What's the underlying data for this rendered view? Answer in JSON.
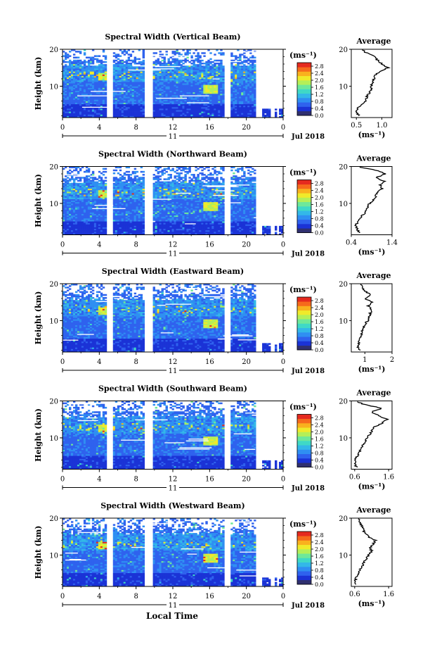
{
  "figure": {
    "x_axis_label": "Local Time",
    "colorbar_unit": "(ms⁻¹)",
    "colorbar_ticks": [
      "0.0",
      "0.4",
      "0.8",
      "1.2",
      "1.6",
      "2.0",
      "2.4",
      "2.8"
    ],
    "profile_title": "Average",
    "profile_xlabel": "(ms⁻¹)",
    "height_label": "Height (km)",
    "date_label": "Jul 2018",
    "day_label": "11",
    "x_ticks": [
      "0",
      "4",
      "8",
      "12",
      "16",
      "20",
      "0"
    ],
    "y_ticks": [
      "20",
      "10"
    ]
  },
  "colors": {
    "colormap": [
      "#303070",
      "#1b33d6",
      "#2f62ee",
      "#2f8ff2",
      "#33b8e8",
      "#3fd9c6",
      "#6ee89a",
      "#b4ef58",
      "#f0ea2a",
      "#f9b11e",
      "#f66a1c",
      "#e52a1f"
    ]
  },
  "chart_data": [
    {
      "type": "heatmap",
      "title": "Spectral Width (Vertical Beam)",
      "x_range_hours": [
        0,
        24
      ],
      "y_range_km": [
        1.5,
        20
      ],
      "color_range": [
        0.0,
        3.0
      ],
      "profile": {
        "xticks": [
          "0.5",
          "1.0"
        ],
        "xlim": [
          0.4,
          1.2
        ],
        "heights": [
          2,
          3,
          4,
          5,
          6,
          7,
          8,
          9,
          10,
          11,
          12,
          13,
          14,
          15,
          16,
          17,
          18,
          19,
          20
        ],
        "values": [
          0.55,
          0.5,
          0.52,
          0.6,
          0.68,
          0.7,
          0.75,
          0.8,
          0.78,
          0.82,
          0.85,
          0.88,
          0.95,
          1.12,
          1.0,
          0.92,
          0.85,
          0.7,
          0.6
        ]
      }
    },
    {
      "type": "heatmap",
      "title": "Spectral Width (Northward Beam)",
      "x_range_hours": [
        0,
        24
      ],
      "y_range_km": [
        1.5,
        20
      ],
      "color_range": [
        0.0,
        3.0
      ],
      "profile": {
        "xticks": [
          "0.4",
          "1.4"
        ],
        "xlim": [
          0.4,
          1.4
        ],
        "heights": [
          2,
          3,
          4,
          5,
          6,
          7,
          8,
          9,
          10,
          11,
          12,
          13,
          14,
          15,
          16,
          17,
          18,
          19,
          20
        ],
        "values": [
          0.6,
          0.55,
          0.5,
          0.58,
          0.62,
          0.7,
          0.75,
          0.8,
          0.85,
          0.95,
          1.0,
          1.05,
          1.15,
          1.1,
          1.2,
          1.0,
          1.25,
          1.0,
          0.5
        ]
      }
    },
    {
      "type": "heatmap",
      "title": "Spectral Width (Eastward Beam)",
      "x_range_hours": [
        0,
        24
      ],
      "y_range_km": [
        1.5,
        20
      ],
      "color_range": [
        0.0,
        3.0
      ],
      "profile": {
        "xticks": [
          "1",
          "2"
        ],
        "xlim": [
          0.5,
          2.0
        ],
        "heights": [
          2,
          3,
          4,
          5,
          6,
          7,
          8,
          9,
          10,
          11,
          12,
          13,
          14,
          15,
          16,
          17,
          18,
          19,
          20
        ],
        "values": [
          0.8,
          0.75,
          0.78,
          0.82,
          0.85,
          0.9,
          0.95,
          1.0,
          1.1,
          1.15,
          1.2,
          1.25,
          1.1,
          1.3,
          1.0,
          1.2,
          1.0,
          0.9,
          0.85
        ]
      }
    },
    {
      "type": "heatmap",
      "title": "Spectral Width (Southward Beam)",
      "x_range_hours": [
        0,
        24
      ],
      "y_range_km": [
        1.5,
        20
      ],
      "color_range": [
        0.0,
        3.0
      ],
      "profile": {
        "xticks": [
          "0.6",
          "1.6"
        ],
        "xlim": [
          0.5,
          1.7
        ],
        "heights": [
          2,
          3,
          4,
          5,
          6,
          7,
          8,
          9,
          10,
          11,
          12,
          13,
          14,
          15,
          16,
          17,
          18,
          19,
          20
        ],
        "values": [
          0.65,
          0.6,
          0.62,
          0.68,
          0.72,
          0.78,
          0.85,
          0.9,
          0.95,
          1.05,
          1.1,
          1.2,
          1.4,
          1.55,
          1.3,
          1.1,
          1.4,
          0.9,
          0.6
        ]
      }
    },
    {
      "type": "heatmap",
      "title": "Spectral Width (Westward Beam)",
      "x_range_hours": [
        0,
        24
      ],
      "y_range_km": [
        1.5,
        20
      ],
      "color_range": [
        0.0,
        3.0
      ],
      "profile": {
        "xticks": [
          "0.6",
          "1.6"
        ],
        "xlim": [
          0.5,
          1.7
        ],
        "heights": [
          2,
          3,
          4,
          5,
          6,
          7,
          8,
          9,
          10,
          11,
          12,
          13,
          14,
          15,
          16,
          17,
          18,
          19,
          20
        ],
        "values": [
          0.65,
          0.62,
          0.65,
          0.7,
          0.75,
          0.82,
          0.88,
          0.95,
          1.0,
          1.1,
          1.05,
          1.15,
          1.2,
          1.0,
          0.9,
          0.85,
          0.8,
          0.75,
          0.7
        ]
      }
    }
  ]
}
